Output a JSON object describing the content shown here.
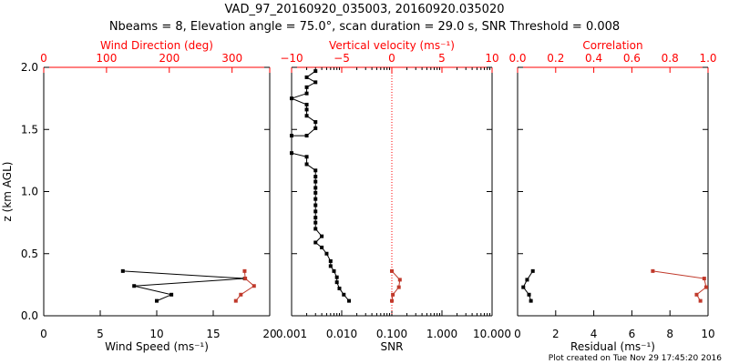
{
  "title_line1": "VAD_97_20160920_035003, 20160920.035020",
  "title_line2": "Nbeams = 8, Elevation angle = 75.0°, scan duration = 29.0 s, SNR Threshold = 0.008",
  "footer": "Plot created on Tue Nov 29 17:45:20 2016",
  "colors": {
    "primary": "#000000",
    "secondary": "#c0392b",
    "axis_red": "#ff0000"
  },
  "chart_data": [
    {
      "type": "line",
      "panel": "wind",
      "ylabel": "z (km AGL)",
      "ylim": [
        0,
        2
      ],
      "y_ticks": [
        "0.0",
        "0.5",
        "1.0",
        "1.5",
        "2.0"
      ],
      "bottom_axis": {
        "label": "Wind Speed (ms⁻¹)",
        "range": [
          0,
          20
        ],
        "ticks": [
          "0",
          "5",
          "10",
          "15",
          "20"
        ]
      },
      "top_axis": {
        "label": "Wind Direction (deg)",
        "range": [
          0,
          360
        ],
        "ticks": [
          "0",
          "100",
          "200",
          "300"
        ]
      },
      "series": [
        {
          "axis": "bottom",
          "color": "black",
          "points": [
            [
              10.0,
              0.12
            ],
            [
              11.3,
              0.17
            ],
            [
              8.0,
              0.24
            ],
            [
              17.8,
              0.3
            ],
            [
              7.0,
              0.36
            ]
          ]
        },
        {
          "axis": "top",
          "color": "red",
          "points": [
            [
              306,
              0.12
            ],
            [
              314,
              0.17
            ],
            [
              335,
              0.24
            ],
            [
              321,
              0.3
            ],
            [
              320,
              0.36
            ]
          ]
        }
      ]
    },
    {
      "type": "line",
      "panel": "snr",
      "bottom_axis": {
        "label": "SNR",
        "scale": "log",
        "range": [
          0.001,
          10
        ],
        "ticks": [
          "0.001",
          "0.010",
          "0.100",
          "1.000",
          "10.000"
        ]
      },
      "top_axis": {
        "label": "Vertical velocity (ms⁻¹)",
        "range": [
          -10,
          10
        ],
        "ticks": [
          "−10",
          "−5",
          "0",
          "5",
          "10"
        ]
      },
      "reference_line": {
        "axis": "top",
        "value": 0,
        "style": "dotted"
      },
      "series": [
        {
          "axis": "bottom",
          "color": "black",
          "points": [
            [
              0.014,
              0.12
            ],
            [
              0.011,
              0.17
            ],
            [
              0.009,
              0.22
            ],
            [
              0.008,
              0.27
            ],
            [
              0.008,
              0.31
            ],
            [
              0.007,
              0.36
            ],
            [
              0.006,
              0.4
            ],
            [
              0.006,
              0.44
            ],
            [
              0.005,
              0.5
            ],
            [
              0.004,
              0.55
            ],
            [
              0.003,
              0.59
            ],
            [
              0.004,
              0.64
            ],
            [
              0.003,
              0.7
            ],
            [
              0.003,
              0.75
            ],
            [
              0.003,
              0.79
            ],
            [
              0.003,
              0.84
            ],
            [
              0.003,
              0.89
            ],
            [
              0.003,
              0.94
            ],
            [
              0.003,
              0.99
            ],
            [
              0.003,
              1.03
            ],
            [
              0.003,
              1.08
            ],
            [
              0.003,
              1.12
            ],
            [
              0.003,
              1.17
            ],
            [
              0.002,
              1.22
            ],
            [
              0.002,
              1.28
            ],
            [
              0.001,
              1.31
            ],
            [
              0.001,
              1.45
            ],
            [
              0.002,
              1.45
            ],
            [
              0.003,
              1.51
            ],
            [
              0.003,
              1.56
            ],
            [
              0.002,
              1.61
            ],
            [
              0.002,
              1.66
            ],
            [
              0.002,
              1.7
            ],
            [
              0.001,
              1.75
            ],
            [
              0.002,
              1.79
            ],
            [
              0.002,
              1.84
            ],
            [
              0.003,
              1.88
            ],
            [
              0.002,
              1.92
            ],
            [
              0.003,
              1.97
            ]
          ]
        },
        {
          "axis": "top",
          "color": "red",
          "points": [
            [
              0.0,
              0.12
            ],
            [
              0.1,
              0.17
            ],
            [
              0.7,
              0.23
            ],
            [
              0.8,
              0.29
            ],
            [
              0.0,
              0.36
            ]
          ]
        }
      ]
    },
    {
      "type": "line",
      "panel": "residual",
      "bottom_axis": {
        "label": "Residual (ms⁻¹)",
        "range": [
          0,
          10
        ],
        "ticks": [
          "0",
          "2",
          "4",
          "6",
          "8",
          "10"
        ]
      },
      "top_axis": {
        "label": "Correlation",
        "range": [
          0,
          1
        ],
        "ticks": [
          "0.0",
          "0.2",
          "0.4",
          "0.6",
          "0.8",
          "1.0"
        ]
      },
      "series": [
        {
          "axis": "bottom",
          "color": "black",
          "points": [
            [
              0.7,
              0.12
            ],
            [
              0.6,
              0.17
            ],
            [
              0.3,
              0.23
            ],
            [
              0.5,
              0.29
            ],
            [
              0.8,
              0.36
            ]
          ]
        },
        {
          "axis": "top",
          "color": "red",
          "points": [
            [
              0.96,
              0.12
            ],
            [
              0.94,
              0.17
            ],
            [
              0.99,
              0.23
            ],
            [
              0.98,
              0.3
            ],
            [
              0.71,
              0.36
            ]
          ]
        }
      ]
    }
  ]
}
